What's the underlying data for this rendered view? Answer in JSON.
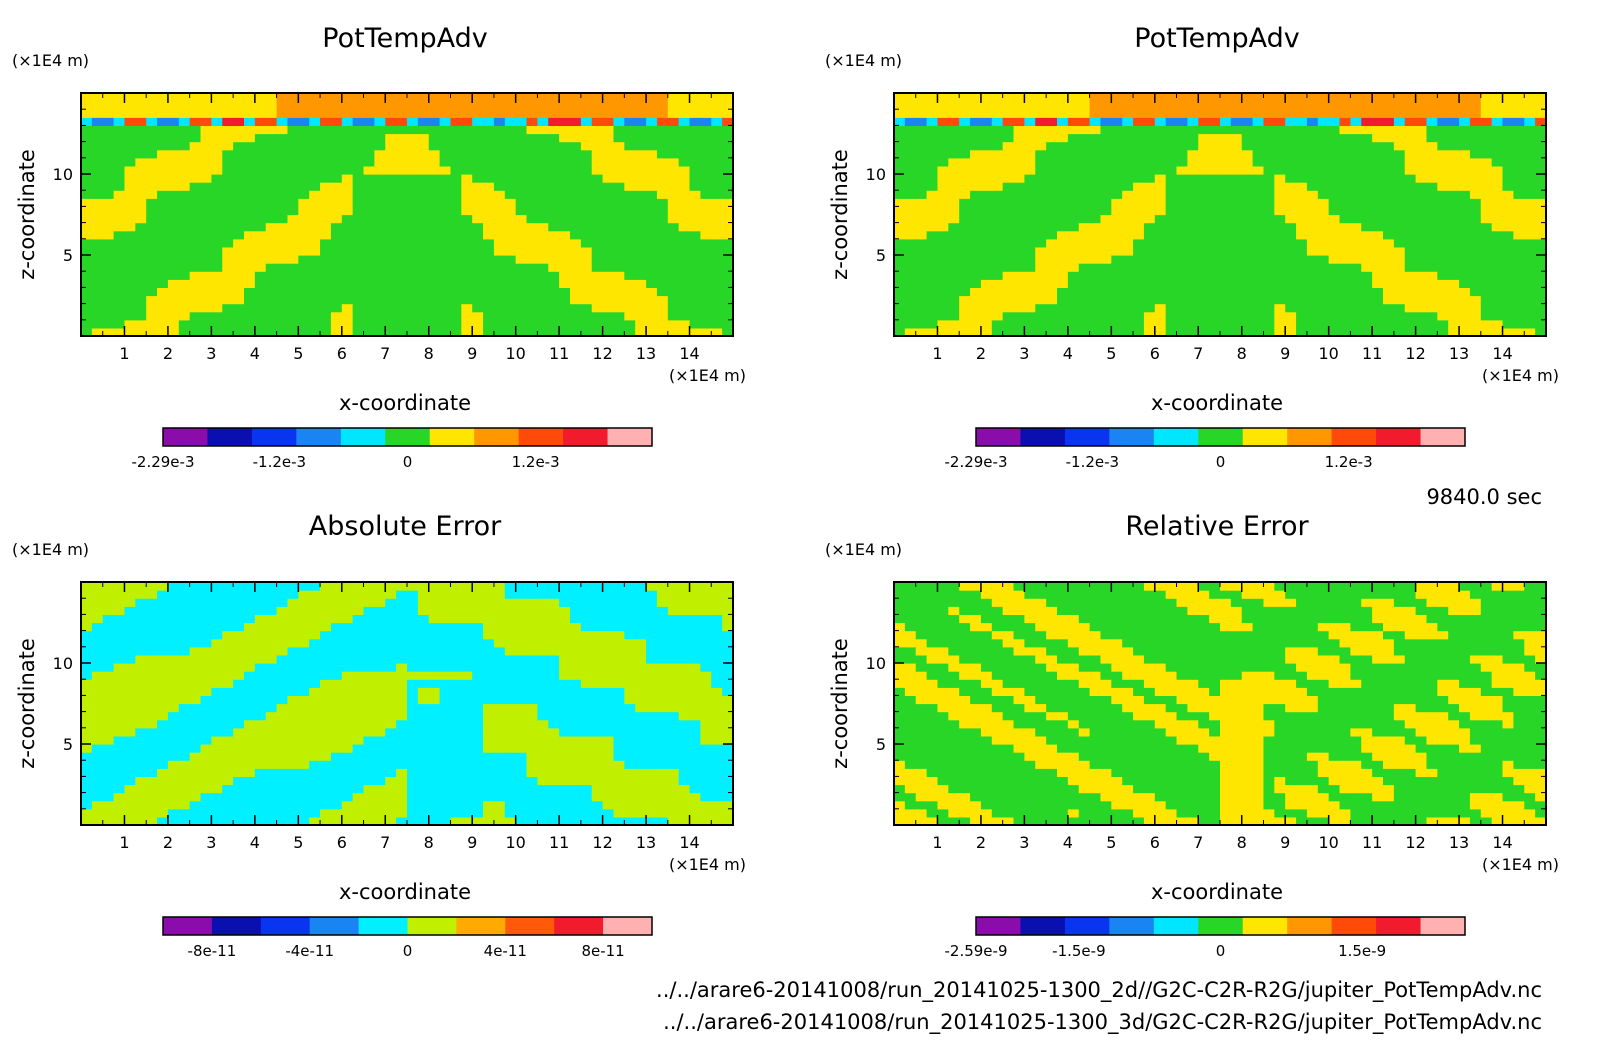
{
  "page": {
    "time_label": "9840.0 sec",
    "file_lines": [
      "../../arare6-20141008/run_20141025-1300_2d//G2C-C2R-R2G/jupiter_PotTempAdv.nc",
      "../../arare6-20141008/run_20141025-1300_3d/G2C-C2R-R2G/jupiter_PotTempAdv.nc"
    ]
  },
  "chart_data": [
    {
      "type": "heatmap",
      "title": "PotTempAdv",
      "xlabel": "x-coordinate",
      "ylabel": "z-coordinate",
      "x_unit": "(×1E4 m)",
      "y_unit": "(×1E4 m)",
      "xlim": [
        0,
        15
      ],
      "ylim": [
        0,
        15
      ],
      "x_ticks": [
        "1",
        "2",
        "3",
        "4",
        "5",
        "6",
        "7",
        "8",
        "9",
        "10",
        "11",
        "12",
        "13",
        "14"
      ],
      "y_ticks": [
        "5",
        "10"
      ],
      "pattern": "field",
      "colorbar": {
        "range": [
          -0.00229,
          0.00229
        ],
        "colors": [
          "#8a0dab",
          "#0a0fb0",
          "#0a35f0",
          "#1a85f2",
          "#00e6ff",
          "#28d628",
          "#ffe600",
          "#ff9800",
          "#ff4a0a",
          "#f21a2d",
          "#ffb0b0"
        ],
        "labels": [
          "-2.29e-3",
          "-1.2e-3",
          "0",
          "1.2e-3"
        ],
        "label_values": [
          -0.00229,
          -0.0012,
          0,
          0.0012
        ]
      }
    },
    {
      "type": "heatmap",
      "title": "PotTempAdv",
      "xlabel": "x-coordinate",
      "ylabel": "z-coordinate",
      "x_unit": "(×1E4 m)",
      "y_unit": "(×1E4 m)",
      "xlim": [
        0,
        15
      ],
      "ylim": [
        0,
        15
      ],
      "x_ticks": [
        "1",
        "2",
        "3",
        "4",
        "5",
        "6",
        "7",
        "8",
        "9",
        "10",
        "11",
        "12",
        "13",
        "14"
      ],
      "y_ticks": [
        "5",
        "10"
      ],
      "pattern": "field",
      "colorbar": {
        "range": [
          -0.00229,
          0.00229
        ],
        "colors": [
          "#8a0dab",
          "#0a0fb0",
          "#0a35f0",
          "#1a85f2",
          "#00e6ff",
          "#28d628",
          "#ffe600",
          "#ff9800",
          "#ff4a0a",
          "#f21a2d",
          "#ffb0b0"
        ],
        "labels": [
          "-2.29e-3",
          "-1.2e-3",
          "0",
          "1.2e-3"
        ],
        "label_values": [
          -0.00229,
          -0.0012,
          0,
          0.0012
        ]
      }
    },
    {
      "type": "heatmap",
      "title": "Absolute Error",
      "xlabel": "x-coordinate",
      "ylabel": "z-coordinate",
      "x_unit": "(×1E4 m)",
      "y_unit": "(×1E4 m)",
      "xlim": [
        0,
        15
      ],
      "ylim": [
        0,
        15
      ],
      "x_ticks": [
        "1",
        "2",
        "3",
        "4",
        "5",
        "6",
        "7",
        "8",
        "9",
        "10",
        "11",
        "12",
        "13",
        "14"
      ],
      "y_ticks": [
        "5",
        "10"
      ],
      "pattern": "abs",
      "colorbar": {
        "range": [
          -1e-10,
          1e-10
        ],
        "colors": [
          "#8a0dab",
          "#0a0fb0",
          "#0a35f0",
          "#1a85f2",
          "#00f0ff",
          "#c0f000",
          "#ffaa00",
          "#ff5a0a",
          "#f21a2d",
          "#ffb0b0"
        ],
        "labels": [
          "-8e-11",
          "-4e-11",
          "0",
          "4e-11",
          "8e-11"
        ],
        "label_values": [
          -8e-11,
          -4e-11,
          0,
          4e-11,
          8e-11
        ]
      }
    },
    {
      "type": "heatmap",
      "title": "Relative Error",
      "xlabel": "x-coordinate",
      "ylabel": "z-coordinate",
      "x_unit": "(×1E4 m)",
      "y_unit": "(×1E4 m)",
      "xlim": [
        0,
        15
      ],
      "ylim": [
        0,
        15
      ],
      "x_ticks": [
        "1",
        "2",
        "3",
        "4",
        "5",
        "6",
        "7",
        "8",
        "9",
        "10",
        "11",
        "12",
        "13",
        "14"
      ],
      "y_ticks": [
        "5",
        "10"
      ],
      "pattern": "rel",
      "colorbar": {
        "range": [
          -2.59e-09,
          2.59e-09
        ],
        "colors": [
          "#8a0dab",
          "#0a0fb0",
          "#0a35f0",
          "#1a85f2",
          "#00e6ff",
          "#28d628",
          "#ffe600",
          "#ff9800",
          "#ff4a0a",
          "#f21a2d",
          "#ffb0b0"
        ],
        "labels": [
          "-2.59e-9",
          "-1.5e-9",
          "0",
          "1.5e-9"
        ],
        "label_values": [
          -2.59e-09,
          -1.5e-09,
          0,
          1.5e-09
        ]
      }
    }
  ]
}
